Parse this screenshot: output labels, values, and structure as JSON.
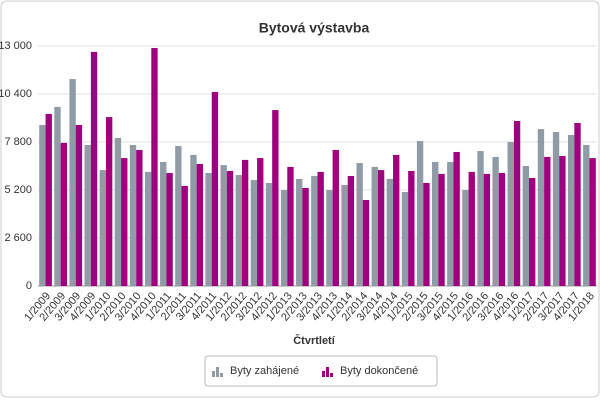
{
  "chart_data": {
    "type": "bar",
    "title": "Bytová výstavba",
    "x_label": "Čtvrtletí",
    "categories": [
      "1/2009",
      "2/2009",
      "3/2009",
      "4/2009",
      "1/2010",
      "2/2010",
      "3/2010",
      "4/2010",
      "1/2011",
      "2/2011",
      "3/2011",
      "4/2011",
      "1/2012",
      "2/2012",
      "3/2012",
      "4/2012",
      "1/2013",
      "2/2013",
      "3/2013",
      "4/2013",
      "1/2014",
      "2/2014",
      "3/2014",
      "4/2014",
      "1/2015",
      "2/2015",
      "3/2015",
      "4/2015",
      "1/2016",
      "2/2016",
      "3/2016",
      "4/2016",
      "1/2017",
      "2/2017",
      "3/2017",
      "4/2017",
      "1/2018"
    ],
    "series": [
      {
        "name": "Byty zahájené",
        "color": "#8f9ba5",
        "values": [
          8720,
          9700,
          11210,
          7640,
          6280,
          8020,
          7640,
          6180,
          6720,
          7580,
          7100,
          6120,
          6550,
          6010,
          5740,
          5580,
          5200,
          5800,
          5960,
          5200,
          5470,
          6660,
          6450,
          5800,
          5090,
          7850,
          6720,
          6720,
          5200,
          7310,
          6990,
          7800,
          6500,
          8500,
          8340,
          8180,
          7640
        ]
      },
      {
        "name": "Byty dokončené",
        "color": "#a0007f",
        "values": [
          9320,
          7750,
          8720,
          12680,
          9150,
          6930,
          7370,
          12890,
          6120,
          5420,
          6610,
          10510,
          6230,
          6830,
          6930,
          9530,
          6450,
          5310,
          6180,
          7370,
          5960,
          4660,
          6280,
          7100,
          6230,
          5580,
          6070,
          7260,
          6180,
          6070,
          6120,
          8940,
          5850,
          6990,
          7040,
          8830,
          6930
        ]
      }
    ],
    "ylim": [
      0,
      13000
    ],
    "yticks": [
      0,
      {
        "value": 2600,
        "label": "2 600"
      },
      {
        "value": 5200,
        "label": "5 200"
      },
      {
        "value": 7800,
        "label": "7 800"
      },
      {
        "value": 10400,
        "label": "10 400"
      },
      {
        "value": 13000,
        "label": "13 000"
      }
    ],
    "grid": true
  }
}
